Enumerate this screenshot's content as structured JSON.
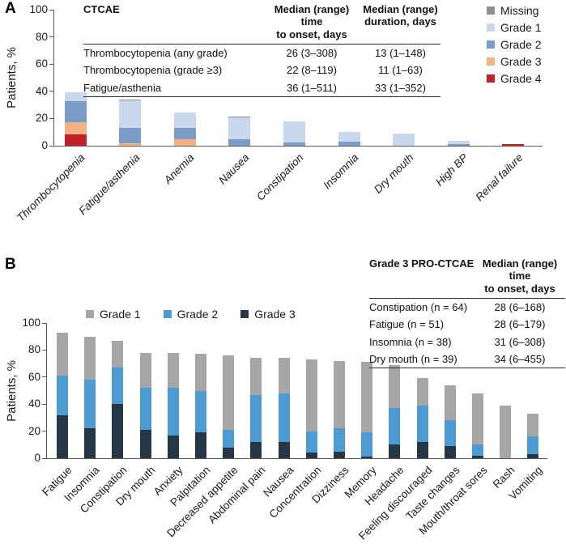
{
  "figure": {
    "panel_a_label": "A",
    "panel_b_label": "B"
  },
  "panel_a": {
    "y_axis_label": "Patients, %",
    "table": {
      "col1_header": "CTCAE",
      "col2_header_line1": "Median (range) time",
      "col2_header_line2": "to onset, days",
      "col3_header_line1": "Median (range)",
      "col3_header_line2": "duration, days",
      "rows": [
        {
          "name": "Thrombocytopenia (any grade)",
          "onset": "26 (3–308)",
          "duration": "13 (1–148)"
        },
        {
          "name": "Thrombocytopenia (grade ≥3)",
          "onset": "22 (8–119)",
          "duration": "11 (1–63)"
        },
        {
          "name": "Fatigue/asthenia",
          "onset": "36 (1–511)",
          "duration": "33 (1–352)"
        }
      ]
    },
    "legend": [
      {
        "label": "Missing",
        "color": "#8f8f8f"
      },
      {
        "label": "Grade 1",
        "color": "#c9d8ed"
      },
      {
        "label": "Grade 2",
        "color": "#7b9cc9"
      },
      {
        "label": "Grade 3",
        "color": "#f4b183"
      },
      {
        "label": "Grade 4",
        "color": "#bf2228"
      }
    ]
  },
  "panel_b": {
    "y_axis_label": "Patients, %",
    "table": {
      "col1_header": "Grade 3 PRO-CTCAE",
      "col2_header_line1": "Median (range) time",
      "col2_header_line2": "to onset, days",
      "rows": [
        {
          "name": "Constipation (n = 64)",
          "onset": "28 (6–168)"
        },
        {
          "name": "Fatigue (n = 51)",
          "onset": "28 (6–179)"
        },
        {
          "name": "Insomnia (n = 38)",
          "onset": "31 (6–308)"
        },
        {
          "name": "Dry mouth (n = 39)",
          "onset": "34 (6–455)"
        }
      ]
    },
    "legend": [
      {
        "label": "Grade 1",
        "color": "#a6a6a6"
      },
      {
        "label": "Grade 2",
        "color": "#4e9ad3"
      },
      {
        "label": "Grade 3",
        "color": "#263746"
      }
    ]
  },
  "chart_data": [
    {
      "panel": "A",
      "type": "bar",
      "stacked": true,
      "stack_order": "bottom-to-top",
      "ylabel": "Patients, %",
      "ylim": [
        0,
        100
      ],
      "y_ticks": [
        0,
        20,
        40,
        60,
        80,
        100
      ],
      "grid": false,
      "legend_position": "top-right-vertical",
      "categories": [
        "Thrombocytopenia",
        "Fatigue/asthenia",
        "Anemia",
        "Nausea",
        "Constipation",
        "Insomnia",
        "Dry mouth",
        "High BP",
        "Renal failure"
      ],
      "series": [
        {
          "name": "Grade 4",
          "color": "#bf2228",
          "values": [
            8.5,
            0,
            0,
            0,
            0,
            0,
            0,
            0,
            1
          ]
        },
        {
          "name": "Grade 3",
          "color": "#f4b183",
          "values": [
            9,
            1.5,
            5,
            0,
            0,
            0,
            0,
            0,
            0
          ]
        },
        {
          "name": "Grade 2",
          "color": "#7b9cc9",
          "values": [
            15,
            11.5,
            8,
            4.5,
            2.5,
            3,
            0,
            1,
            0
          ]
        },
        {
          "name": "Grade 1",
          "color": "#c9d8ed",
          "values": [
            7,
            20.5,
            11.5,
            16.5,
            15.5,
            7,
            9,
            2.5,
            0
          ]
        },
        {
          "name": "Missing",
          "color": "#8f8f8f",
          "values": [
            0,
            0.7,
            0,
            0.7,
            0,
            0,
            0,
            0,
            0
          ]
        }
      ]
    },
    {
      "panel": "B",
      "type": "bar",
      "stacked": true,
      "stack_order": "bottom-to-top",
      "ylabel": "Patients, %",
      "ylim": [
        0,
        100
      ],
      "y_ticks": [
        0,
        20,
        40,
        60,
        80,
        100
      ],
      "grid": false,
      "legend_position": "top-horizontal",
      "categories": [
        "Fatigue",
        "Insomnia",
        "Constipation",
        "Dry mouth",
        "Anxiety",
        "Palpitation",
        "Decreased appetite",
        "Abdominal pain",
        "Nausea",
        "Concentration",
        "Dizziness",
        "Memory",
        "Headache",
        "Feeling discouraged",
        "Taste changes",
        "Mouth/throat sores",
        "Rash",
        "Vomiting"
      ],
      "series": [
        {
          "name": "Grade 3",
          "color": "#263746",
          "values": [
            32,
            22,
            40,
            21,
            17,
            19,
            8,
            12,
            12,
            4,
            5,
            1.5,
            10,
            12,
            9,
            2,
            0,
            3
          ]
        },
        {
          "name": "Grade 2",
          "color": "#4e9ad3",
          "values": [
            29,
            36,
            27,
            31,
            35,
            31,
            13,
            35,
            36,
            16,
            17,
            17.5,
            27,
            27,
            19,
            8,
            0,
            13
          ]
        },
        {
          "name": "Grade 1",
          "color": "#a6a6a6",
          "values": [
            32,
            32,
            20,
            26,
            26,
            27,
            55,
            27,
            26,
            53,
            50,
            52,
            32,
            20,
            26,
            38,
            39,
            17
          ]
        }
      ]
    }
  ]
}
